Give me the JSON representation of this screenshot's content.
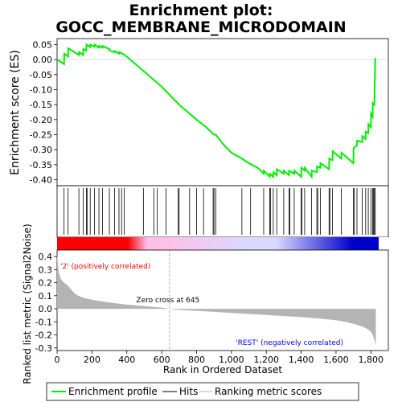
{
  "chart_data": {
    "type": "line",
    "title_line1": "Enrichment plot:",
    "title_line2": "GOCC_MEMBRANE_MICRODOMAIN",
    "xlabel": "Rank in Ordered Dataset",
    "xlim": [
      0,
      1900
    ],
    "x_ticks": [
      0,
      200,
      400,
      600,
      800,
      1000,
      1200,
      1400,
      1600,
      1800
    ],
    "x_tick_labels": [
      "0",
      "200",
      "400",
      "600",
      "800",
      "1,000",
      "1,200",
      "1,400",
      "1,600",
      "1,800"
    ],
    "enrichment": {
      "ylabel": "Enrichment score (ES)",
      "ylim": [
        -0.42,
        0.07
      ],
      "y_ticks": [
        0.05,
        0.0,
        -0.05,
        -0.1,
        -0.15,
        -0.2,
        -0.25,
        -0.3,
        -0.35,
        -0.4
      ],
      "y_tick_labels": [
        "0.05",
        "0.00",
        "-0.05",
        "-0.10",
        "-0.15",
        "-0.20",
        "-0.25",
        "-0.30",
        "-0.35",
        "-0.40"
      ],
      "color": "#00ee00",
      "x": [
        0,
        40,
        41,
        63,
        64,
        125,
        126,
        150,
        151,
        168,
        169,
        190,
        191,
        215,
        216,
        240,
        241,
        260,
        261,
        300,
        301,
        330,
        331,
        355,
        356,
        385,
        386,
        400,
        500,
        560,
        600,
        650,
        700,
        750,
        800,
        850,
        900,
        910,
        950,
        1000,
        1060,
        1100,
        1150,
        1185,
        1186,
        1220,
        1221,
        1240,
        1241,
        1260,
        1261,
        1300,
        1301,
        1330,
        1331,
        1360,
        1361,
        1400,
        1401,
        1420,
        1421,
        1460,
        1461,
        1490,
        1491,
        1510,
        1511,
        1560,
        1561,
        1580,
        1581,
        1630,
        1631,
        1700,
        1701,
        1720,
        1721,
        1750,
        1751,
        1770,
        1771,
        1785,
        1786,
        1800,
        1801,
        1810,
        1811,
        1820,
        1821,
        1825
      ],
      "y": [
        0.0,
        -0.015,
        0.02,
        0.01,
        0.038,
        0.015,
        0.025,
        0.015,
        0.035,
        0.03,
        0.05,
        0.042,
        0.05,
        0.043,
        0.05,
        0.04,
        0.045,
        0.04,
        0.045,
        0.035,
        0.03,
        0.025,
        0.028,
        0.02,
        0.025,
        0.017,
        0.015,
        0.01,
        -0.04,
        -0.07,
        -0.09,
        -0.12,
        -0.15,
        -0.175,
        -0.2,
        -0.222,
        -0.25,
        -0.25,
        -0.28,
        -0.31,
        -0.33,
        -0.345,
        -0.36,
        -0.38,
        -0.37,
        -0.39,
        -0.38,
        -0.39,
        -0.375,
        -0.385,
        -0.365,
        -0.38,
        -0.37,
        -0.385,
        -0.37,
        -0.38,
        -0.37,
        -0.39,
        -0.36,
        -0.37,
        -0.36,
        -0.39,
        -0.37,
        -0.375,
        -0.355,
        -0.36,
        -0.345,
        -0.365,
        -0.33,
        -0.335,
        -0.305,
        -0.33,
        -0.31,
        -0.345,
        -0.295,
        -0.285,
        -0.27,
        -0.275,
        -0.255,
        -0.265,
        -0.24,
        -0.245,
        -0.215,
        -0.225,
        -0.18,
        -0.19,
        -0.145,
        -0.15,
        -0.11,
        0.005
      ]
    },
    "hits": [
      40,
      63,
      125,
      150,
      168,
      172,
      190,
      215,
      240,
      260,
      300,
      330,
      355,
      370,
      385,
      495,
      555,
      575,
      625,
      695,
      700,
      760,
      800,
      840,
      895,
      900,
      910,
      1060,
      1110,
      1185,
      1220,
      1225,
      1240,
      1260,
      1300,
      1330,
      1335,
      1360,
      1400,
      1405,
      1420,
      1460,
      1490,
      1495,
      1510,
      1560,
      1565,
      1580,
      1630,
      1700,
      1705,
      1720,
      1750,
      1770,
      1785,
      1800,
      1810,
      1815,
      1820,
      1825
    ],
    "metric": {
      "ylabel": "Ranked list metric (Signal2Noise)",
      "ylim": [
        -0.32,
        0.45
      ],
      "y_ticks": [
        0.4,
        0.3,
        0.2,
        0.1,
        0.0,
        -0.1,
        -0.2,
        -0.3
      ],
      "y_tick_labels": [
        "0.4",
        "0.3",
        "0.2",
        "0.1",
        "0.0",
        "-0.1",
        "-0.2",
        "-0.3"
      ],
      "fill_color": "#b4b4b4",
      "x": [
        0,
        5,
        10,
        20,
        40,
        60,
        80,
        100,
        120,
        150,
        200,
        300,
        400,
        500,
        600,
        645,
        700,
        800,
        900,
        1000,
        1100,
        1200,
        1300,
        1400,
        1500,
        1600,
        1650,
        1700,
        1750,
        1780,
        1800,
        1810,
        1820,
        1828
      ],
      "y": [
        0.42,
        0.34,
        0.28,
        0.23,
        0.2,
        0.18,
        0.15,
        0.12,
        0.1,
        0.085,
        0.07,
        0.048,
        0.032,
        0.02,
        0.009,
        0.0,
        -0.008,
        -0.016,
        -0.024,
        -0.032,
        -0.04,
        -0.048,
        -0.056,
        -0.064,
        -0.074,
        -0.088,
        -0.1,
        -0.115,
        -0.135,
        -0.155,
        -0.175,
        -0.2,
        -0.24,
        -0.28
      ]
    },
    "zero_cross": {
      "x": 645,
      "label": "Zero cross at 645"
    },
    "pos_label": "'2' (positively correlated)",
    "neg_label": "'REST' (negatively correlated)",
    "pos_label_color": "#ff0000",
    "neg_label_color": "#0000ff",
    "legend": [
      {
        "label": "Enrichment profile",
        "color": "#00ee00"
      },
      {
        "label": "Hits",
        "color": "#000000"
      },
      {
        "label": "Ranking metric scores",
        "color": "#b4b4b4"
      }
    ],
    "colorbar": [
      "#ff0000",
      "#ffbfe8",
      "#d9d9ff",
      "#0000cc"
    ]
  }
}
